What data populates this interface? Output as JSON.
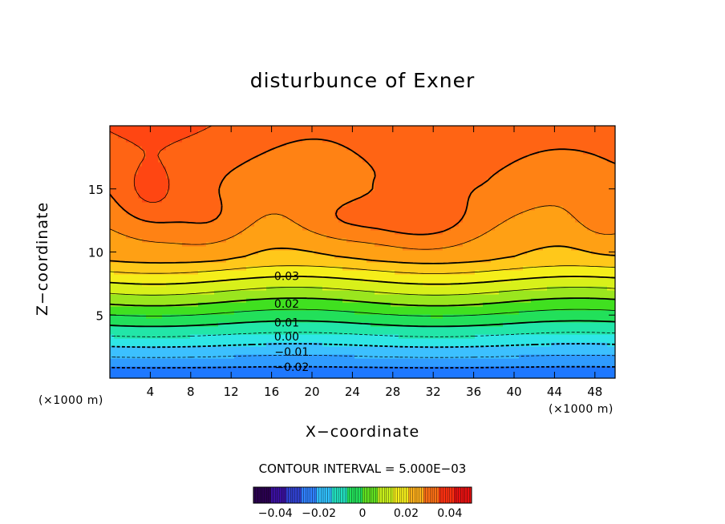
{
  "chart_data": {
    "type": "contour",
    "title": "disturbunce of Exner",
    "xlabel": "X−coordinate",
    "ylabel": "Z−coordinate",
    "x_unit": "(×1000 m)",
    "y_unit": "(×1000 m)",
    "xlim": [
      0,
      50
    ],
    "ylim": [
      0,
      20
    ],
    "x_ticks": [
      4,
      8,
      12,
      16,
      20,
      24,
      28,
      32,
      36,
      40,
      44,
      48
    ],
    "y_ticks": [
      5,
      10,
      15
    ],
    "contour_interval_text": "CONTOUR INTERVAL = 5.000E−03",
    "contour_interval": 0.005,
    "contour_labels": [
      {
        "value": 0.03,
        "text": "0.03",
        "x": 17.5,
        "z": 8.1
      },
      {
        "value": 0.02,
        "text": "0.02",
        "x": 17.5,
        "z": 5.9
      },
      {
        "value": 0.01,
        "text": "0.01",
        "x": 17.5,
        "z": 4.4
      },
      {
        "value": 0.0,
        "text": "0.00",
        "x": 17.5,
        "z": 3.3
      },
      {
        "value": -0.01,
        "text": "−0.01",
        "x": 18.0,
        "z": 2.1
      },
      {
        "value": -0.02,
        "text": "−0.02",
        "x": 18.0,
        "z": 0.9
      }
    ],
    "colorbar": {
      "min": -0.05,
      "max": 0.05,
      "tick_values": [
        -0.04,
        -0.02,
        0,
        0.02,
        0.04
      ],
      "tick_labels": [
        "−0.04",
        "−0.02",
        "0",
        "0.02",
        "0.04"
      ]
    },
    "bands": [
      {
        "value": -0.025,
        "color": "#1e78ff"
      },
      {
        "value": -0.02,
        "color": "#2f9bff"
      },
      {
        "value": -0.015,
        "color": "#3cc0ff"
      },
      {
        "value": -0.01,
        "color": "#2fe6e6"
      },
      {
        "value": -0.005,
        "color": "#22e6a8"
      },
      {
        "value": 0.0,
        "color": "#22e05a"
      },
      {
        "value": 0.005,
        "color": "#40e020"
      },
      {
        "value": 0.01,
        "color": "#9ae61e"
      },
      {
        "value": 0.015,
        "color": "#d8f01a"
      },
      {
        "value": 0.02,
        "color": "#f5ee1a"
      },
      {
        "value": 0.025,
        "color": "#ffc81a"
      },
      {
        "value": 0.03,
        "color": "#ffa014"
      },
      {
        "value": 0.035,
        "color": "#ff8214"
      },
      {
        "value": 0.04,
        "color": "#ff6414"
      },
      {
        "value": 0.045,
        "color": "#ff4612"
      }
    ]
  }
}
